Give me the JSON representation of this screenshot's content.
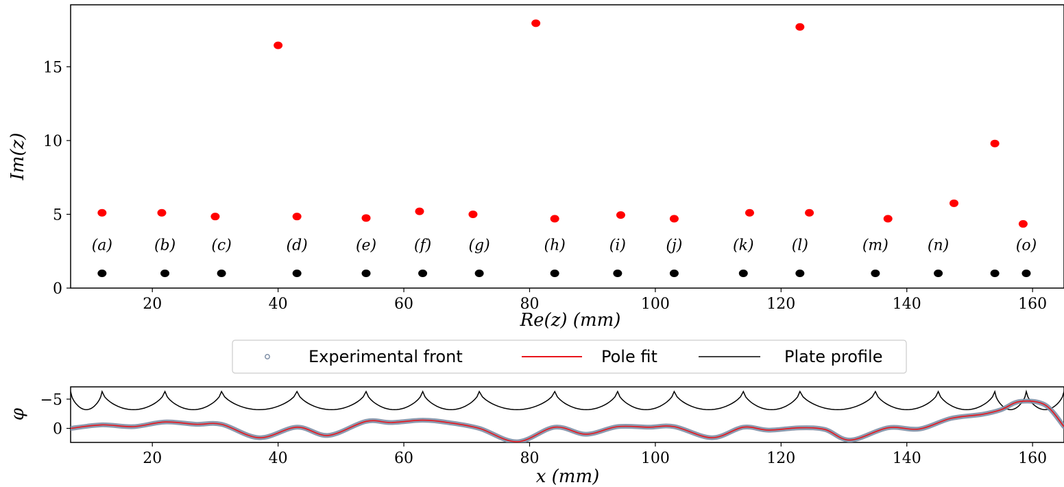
{
  "top_chart": {
    "chart_data": {
      "type": "scatter",
      "xlabel": "Re(z) (mm)",
      "ylabel": "Im(z)",
      "xlim": [
        7,
        165
      ],
      "ylim": [
        0,
        19.2
      ],
      "xticks": [
        20,
        40,
        60,
        80,
        100,
        120,
        140,
        160
      ],
      "yticks": [
        0,
        5,
        10,
        15
      ],
      "series": [
        {
          "color": "#ff0000",
          "points": [
            [
              12,
              5.1
            ],
            [
              21.5,
              5.1
            ],
            [
              30,
              4.85
            ],
            [
              40,
              16.45
            ],
            [
              43,
              4.85
            ],
            [
              54,
              4.75
            ],
            [
              62.5,
              5.2
            ],
            [
              71,
              5.0
            ],
            [
              81,
              17.95
            ],
            [
              84,
              4.7
            ],
            [
              94.5,
              4.95
            ],
            [
              103,
              4.7
            ],
            [
              115,
              5.1
            ],
            [
              123,
              17.7
            ],
            [
              124.5,
              5.1
            ],
            [
              137,
              4.7
            ],
            [
              147.5,
              5.75
            ],
            [
              154,
              9.8
            ],
            [
              158.5,
              4.35
            ]
          ]
        },
        {
          "color": "#000000",
          "points": [
            [
              12,
              1
            ],
            [
              22,
              1
            ],
            [
              31,
              1
            ],
            [
              43,
              1
            ],
            [
              54,
              1
            ],
            [
              63,
              1
            ],
            [
              72,
              1
            ],
            [
              84,
              1
            ],
            [
              94,
              1
            ],
            [
              103,
              1
            ],
            [
              114,
              1
            ],
            [
              123,
              1
            ],
            [
              135,
              1
            ],
            [
              145,
              1
            ],
            [
              154,
              1
            ],
            [
              159,
              1
            ]
          ]
        }
      ],
      "annotations": [
        {
          "text": "(a)",
          "x": 12,
          "y": 2.9
        },
        {
          "text": "(b)",
          "x": 22,
          "y": 2.9
        },
        {
          "text": "(c)",
          "x": 31,
          "y": 2.9
        },
        {
          "text": "(d)",
          "x": 43,
          "y": 2.9
        },
        {
          "text": "(e)",
          "x": 54,
          "y": 2.9
        },
        {
          "text": "(f)",
          "x": 63,
          "y": 2.9
        },
        {
          "text": "(g)",
          "x": 72,
          "y": 2.9
        },
        {
          "text": "(h)",
          "x": 84,
          "y": 2.9
        },
        {
          "text": "(i)",
          "x": 94,
          "y": 2.9
        },
        {
          "text": "(j)",
          "x": 103,
          "y": 2.9
        },
        {
          "text": "(k)",
          "x": 114,
          "y": 2.9
        },
        {
          "text": "(l)",
          "x": 123,
          "y": 2.9
        },
        {
          "text": "(m)",
          "x": 135,
          "y": 2.9
        },
        {
          "text": "(n)",
          "x": 145,
          "y": 2.9
        },
        {
          "text": "(o)",
          "x": 159,
          "y": 2.9
        }
      ]
    }
  },
  "legend": {
    "items": [
      {
        "label": "Experimental front",
        "color": "#7f8fa6",
        "marker": "hollow-circle"
      },
      {
        "label": "Pole fit",
        "color": "#e8141b",
        "marker": "line"
      },
      {
        "label": "Plate profile",
        "color": "#000000",
        "marker": "line"
      }
    ]
  },
  "bottom_chart": {
    "chart_data": {
      "type": "line",
      "xlabel": "x (mm)",
      "ylabel": "φ",
      "xlim": [
        7,
        165
      ],
      "ylim": [
        2.4,
        -7.1
      ],
      "y_inverted": true,
      "xticks": [
        20,
        40,
        60,
        80,
        100,
        120,
        140,
        160
      ],
      "yticks": [
        -5,
        0
      ],
      "ytick_labels": [
        "−5",
        "0"
      ],
      "series": [
        {
          "name": "Experimental front",
          "color": "#7f8fa6",
          "x": [
            7,
            12,
            17,
            22,
            27,
            31,
            37,
            43,
            48,
            54,
            58,
            63,
            67,
            72,
            78,
            84,
            89,
            94,
            99,
            103,
            109,
            114,
            118,
            123,
            127,
            131,
            137,
            142,
            147,
            152,
            155,
            158,
            162,
            165
          ],
          "y": [
            0.0,
            -0.6,
            -0.3,
            -1.1,
            -0.7,
            -0.7,
            1.6,
            -0.2,
            1.2,
            -1.2,
            -1.0,
            -1.4,
            -1.0,
            0.0,
            2.3,
            -0.2,
            1.0,
            -0.3,
            -0.2,
            -0.3,
            1.6,
            -0.2,
            0.3,
            -0.1,
            0.2,
            2.0,
            -0.1,
            0.1,
            -1.7,
            -2.4,
            -3.2,
            -4.6,
            -4.0,
            -0.3
          ]
        },
        {
          "name": "Pole fit",
          "color": "#e8141b",
          "x": [
            7,
            12,
            17,
            22,
            27,
            31,
            37,
            43,
            48,
            54,
            58,
            63,
            67,
            72,
            78,
            84,
            89,
            94,
            99,
            103,
            109,
            114,
            118,
            123,
            127,
            131,
            137,
            142,
            147,
            152,
            155,
            158,
            162,
            165
          ],
          "y": [
            0.0,
            -0.6,
            -0.3,
            -1.1,
            -0.7,
            -0.7,
            1.6,
            -0.2,
            1.2,
            -1.2,
            -1.0,
            -1.4,
            -1.0,
            0.0,
            2.3,
            -0.2,
            1.0,
            -0.3,
            -0.2,
            -0.3,
            1.6,
            -0.2,
            0.3,
            -0.1,
            0.2,
            2.0,
            -0.1,
            0.1,
            -1.7,
            -2.4,
            -3.2,
            -4.6,
            -4.0,
            -0.3
          ]
        },
        {
          "name": "Plate profile",
          "color": "#000000",
          "bumps": [
            12,
            22,
            31,
            43,
            54,
            63,
            72,
            84,
            94,
            103,
            114,
            123,
            135,
            145,
            154,
            159
          ],
          "base": -3.2,
          "peak": -6.3
        }
      ]
    }
  }
}
